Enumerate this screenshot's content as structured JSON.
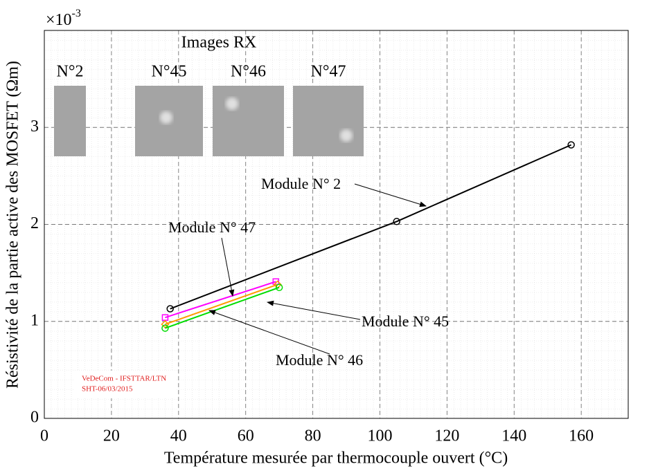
{
  "chart_data": {
    "type": "line",
    "x_label": "Température mesurée par thermocouple ouvert (°C)",
    "y_label": "Résistivité de la partie active des MOSFET (Ωm)",
    "y_multiplier": {
      "base": "×10",
      "exponent": "-3"
    },
    "xlim": [
      0,
      174
    ],
    "xticks": [
      0,
      20,
      40,
      60,
      80,
      100,
      120,
      140,
      160
    ],
    "ylim": [
      0,
      4
    ],
    "yticks": [
      0,
      1,
      2,
      3
    ],
    "grid": true,
    "series": [
      {
        "name": "Module N° 2",
        "color": "#000000",
        "marker": "circle",
        "x": [
          37.5,
          105,
          157
        ],
        "values": [
          1.13,
          2.03,
          2.82
        ]
      },
      {
        "name": "Module N° 47",
        "color": "#ff00ff",
        "marker": "square",
        "x": [
          36,
          69
        ],
        "values": [
          1.04,
          1.41
        ]
      },
      {
        "name": "Module N° 45",
        "color": "#ff9900",
        "marker": "diamond",
        "x": [
          36,
          69.5
        ],
        "values": [
          0.97,
          1.38
        ]
      },
      {
        "name": "Module N° 46",
        "color": "#00dd00",
        "marker": "circle",
        "x": [
          36,
          70
        ],
        "values": [
          0.93,
          1.35
        ]
      }
    ],
    "inset_title": "Images RX",
    "inset_labels": [
      "N°2",
      "N°45",
      "N°46",
      "N°47"
    ],
    "watermark": [
      "VeDeCom - IFSTTAR/LTN",
      "SHT-06/03/2015"
    ]
  }
}
